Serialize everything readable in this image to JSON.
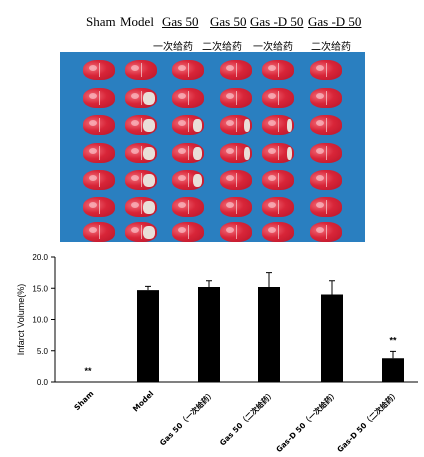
{
  "headers": {
    "groups": [
      "Sham",
      "Model",
      "Gas 50",
      "Gas 50",
      "Gas -D 50",
      "Gas -D 50"
    ],
    "subs": [
      "一次给药",
      "二次给药",
      "一次给药",
      "二次给药"
    ]
  },
  "chart_data": {
    "type": "bar",
    "categories": [
      "Sham",
      "Model",
      "Gas 50（一次给药）",
      "Gas 50（二次给药）",
      "Gas-D 50（一次给药）",
      "Gas-D 50（二次给药）"
    ],
    "values": [
      0.0,
      14.7,
      15.2,
      15.2,
      14.0,
      3.8
    ],
    "errors": [
      0.0,
      0.6,
      1.0,
      2.3,
      2.2,
      1.1
    ],
    "significance": [
      "**",
      "",
      "",
      "",
      "",
      "**"
    ],
    "ylabel": "Infarct  Volume(%)",
    "ylim": [
      0,
      20
    ],
    "yticks": [
      "0.0",
      "5.0",
      "10.0",
      "15.0",
      "20.0"
    ],
    "grid": false
  }
}
